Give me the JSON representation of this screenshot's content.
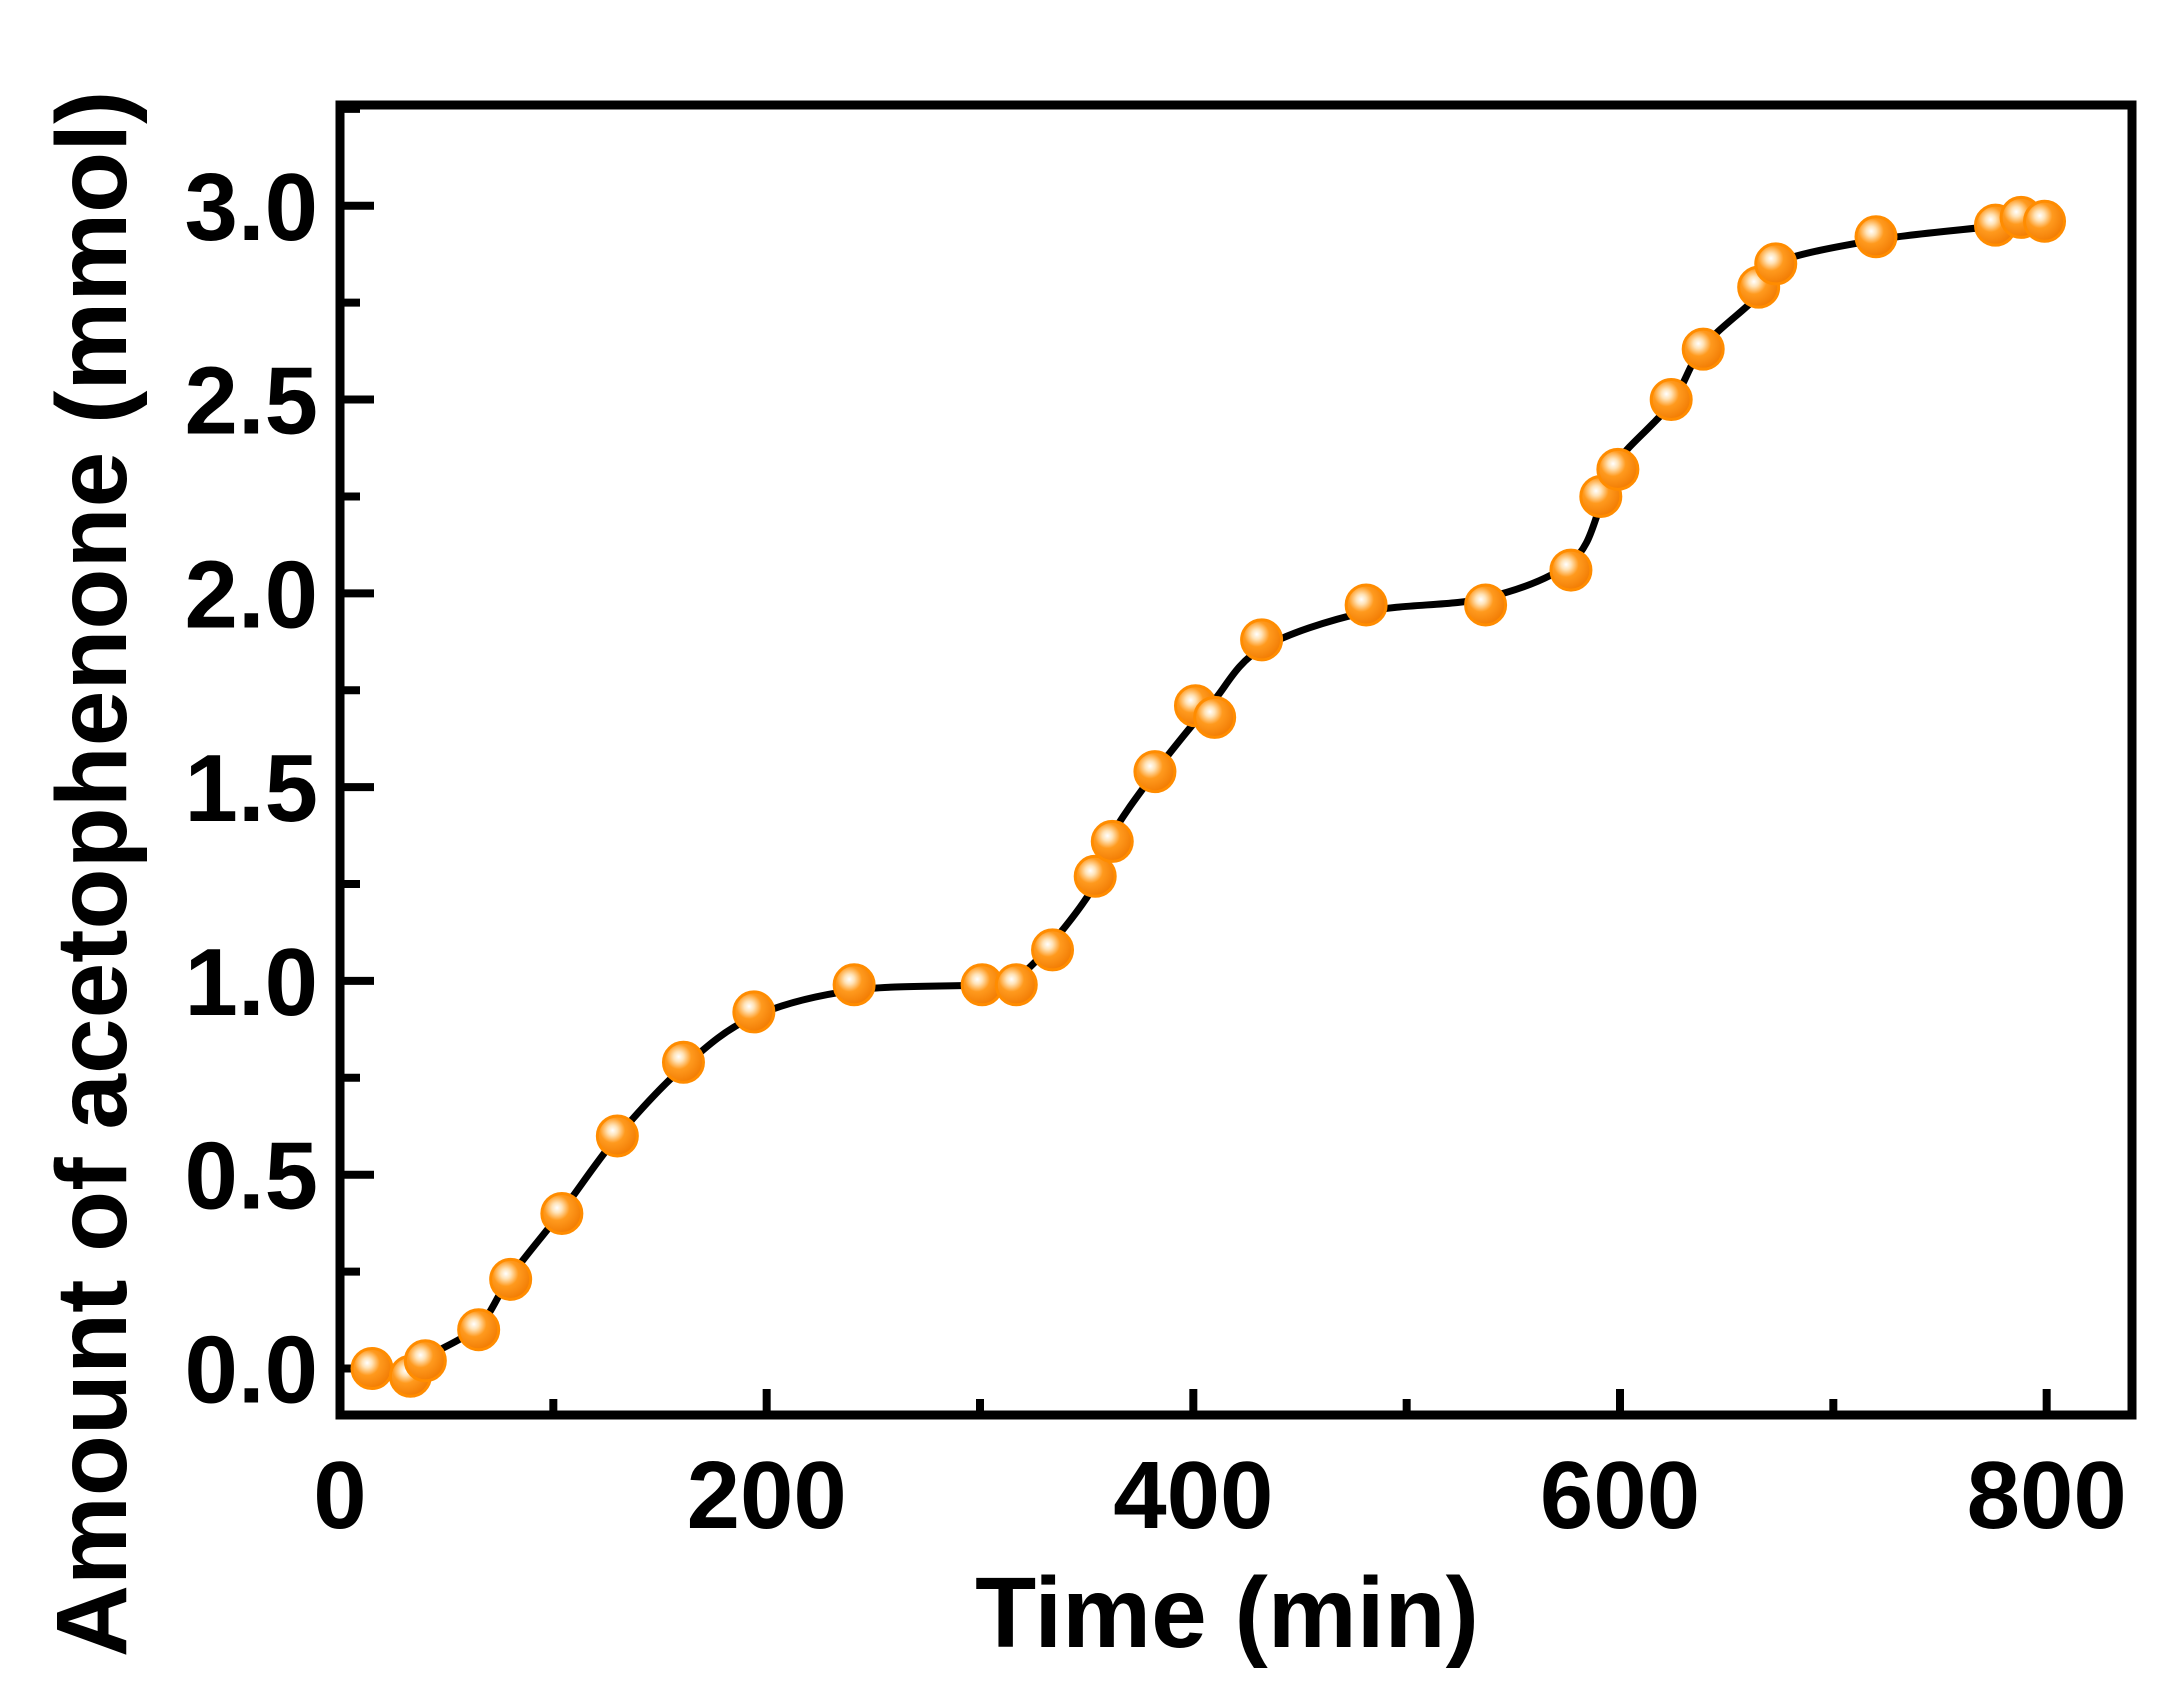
{
  "chart_data": {
    "type": "scatter",
    "title": "",
    "xlabel": "Time (min)",
    "ylabel": "Amount of acetophenone (mmol)",
    "xlim": [
      0,
      840
    ],
    "ylim": [
      -0.12,
      3.26
    ],
    "x_ticks": [
      0,
      200,
      400,
      600,
      800
    ],
    "x_tick_labels": [
      "0",
      "200",
      "400",
      "600",
      "800"
    ],
    "y_ticks": [
      0.0,
      0.5,
      1.0,
      1.5,
      2.0,
      2.5,
      3.0
    ],
    "y_tick_labels": [
      "0.0",
      "0.5",
      "1.0",
      "1.5",
      "2.0",
      "2.5",
      "3.0"
    ],
    "grid": false,
    "legend": "none",
    "series": [
      {
        "style": "markers with smooth fitted curve",
        "marker_color": "#FF8C00",
        "line_color": "#000000",
        "x": [
          15,
          33,
          40,
          65,
          80,
          104,
          130,
          161,
          194,
          241,
          301,
          317,
          334,
          354,
          362,
          382,
          401,
          410,
          432,
          481,
          537,
          577,
          591,
          599,
          624,
          639,
          665,
          673,
          720,
          776,
          788,
          799
        ],
        "y": [
          0.0,
          -0.02,
          0.02,
          0.1,
          0.23,
          0.4,
          0.6,
          0.79,
          0.92,
          0.99,
          0.99,
          0.99,
          1.08,
          1.27,
          1.36,
          1.54,
          1.71,
          1.68,
          1.88,
          1.97,
          1.97,
          2.06,
          2.25,
          2.32,
          2.5,
          2.63,
          2.79,
          2.85,
          2.92,
          2.95,
          2.97,
          2.96
        ]
      }
    ]
  }
}
